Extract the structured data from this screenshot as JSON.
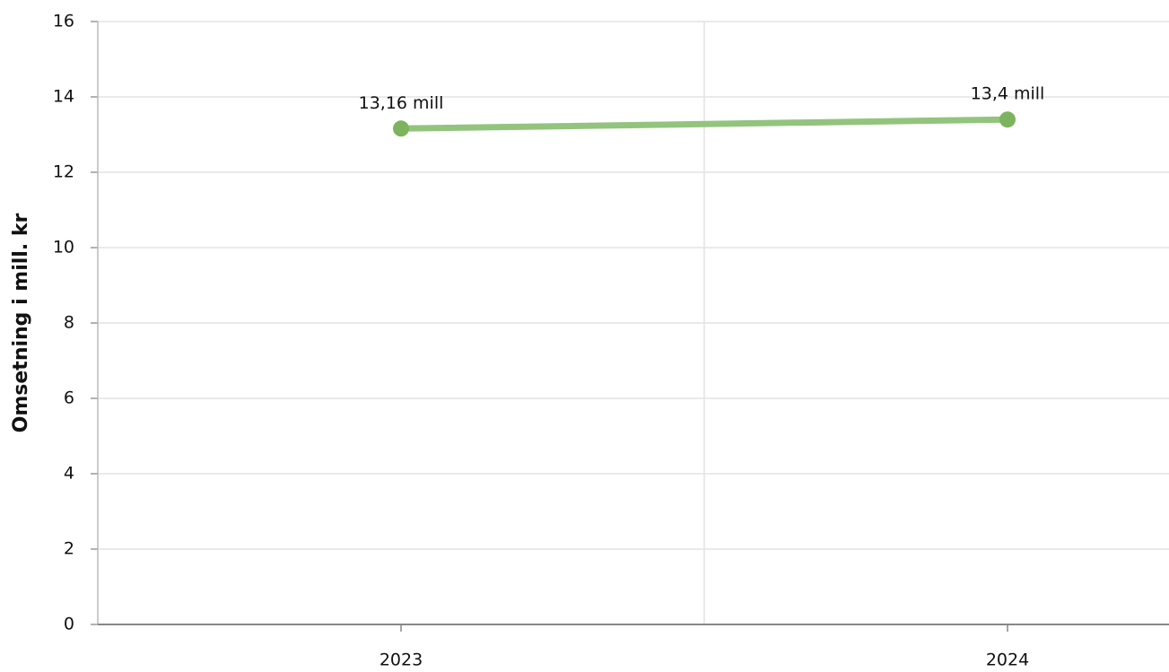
{
  "chart_data": {
    "type": "line",
    "y_label": "Omsetning i mill. kr",
    "categories": [
      "2023",
      "2024"
    ],
    "series": [
      {
        "name": null,
        "color": "#93c47d",
        "marker_color": "#7db35e",
        "values": [
          13.16,
          13.4
        ],
        "value_labels": [
          "13,16 mill",
          "13,4 mill"
        ]
      }
    ],
    "ylim": [
      0,
      16
    ],
    "yticks": [
      0,
      2,
      4,
      6,
      8,
      10,
      12,
      14,
      16
    ],
    "grid": true
  }
}
